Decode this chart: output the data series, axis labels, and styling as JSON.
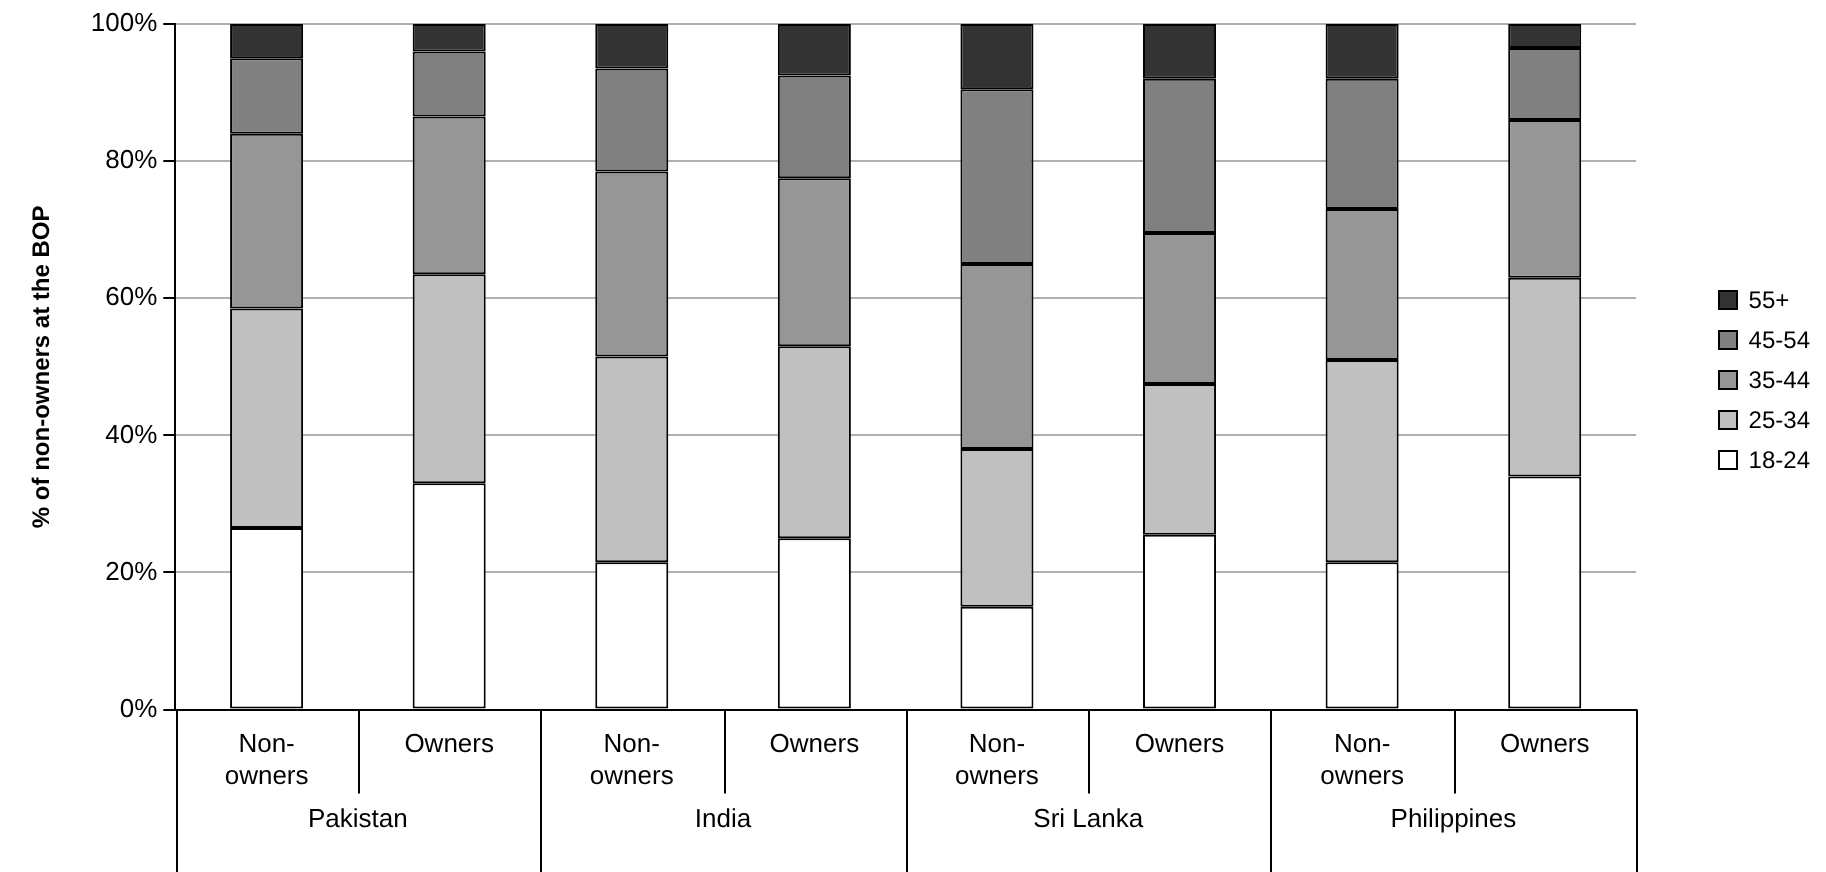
{
  "chart_data": {
    "type": "bar",
    "stacked": true,
    "ylabel": "% of non-owners at the BOP",
    "categories": [
      "Non-owners",
      "Owners",
      "Non-owners",
      "Owners",
      "Non-owners",
      "Owners",
      "Non-owners",
      "Owners"
    ],
    "annotations": [
      "Pakistan",
      "India",
      "Sri Lanka",
      "Philippines"
    ],
    "series": [
      {
        "name": "18-24",
        "color": "#ffffff",
        "values": [
          26.5,
          33,
          21.5,
          25,
          15,
          25.5,
          21.5,
          34
        ]
      },
      {
        "name": "25-34",
        "color": "#c0c0c0",
        "values": [
          32,
          30.5,
          30,
          28,
          23,
          22,
          29.5,
          29
        ]
      },
      {
        "name": "35-44",
        "color": "#969696",
        "values": [
          25.5,
          23,
          27,
          24.5,
          27,
          22,
          22,
          23
        ]
      },
      {
        "name": "45-54",
        "color": "#808080",
        "values": [
          11,
          9.5,
          15,
          15,
          25.5,
          22.5,
          19,
          10.5
        ]
      },
      {
        "name": "55+",
        "color": "#333333",
        "values": [
          5,
          4,
          6.5,
          7.5,
          9.5,
          8,
          8,
          3.5
        ]
      }
    ],
    "ylim": [
      0,
      100
    ],
    "yticks": [
      {
        "value": 0,
        "label": "0%"
      },
      {
        "value": 20,
        "label": "20%"
      },
      {
        "value": 40,
        "label": "40%"
      },
      {
        "value": 60,
        "label": "60%"
      },
      {
        "value": 80,
        "label": "80%"
      },
      {
        "value": 100,
        "label": "100%"
      }
    ],
    "grid": "y",
    "legend": "right"
  }
}
